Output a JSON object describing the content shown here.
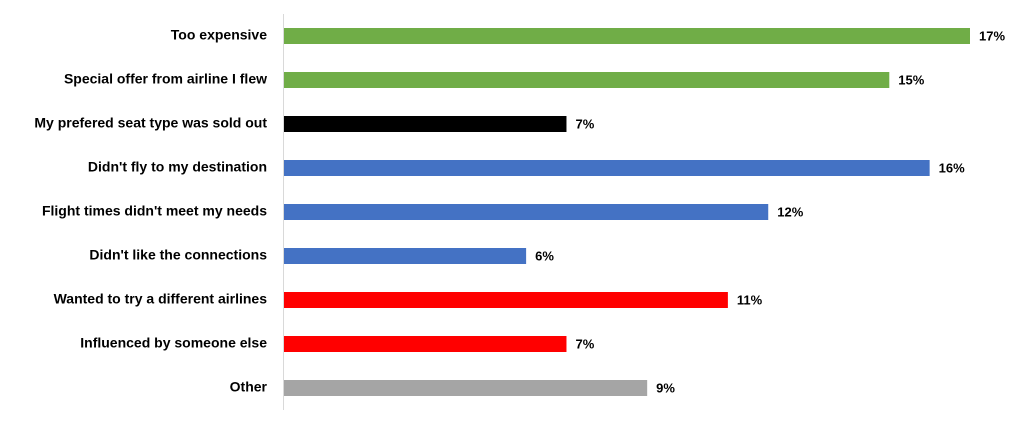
{
  "chart_data": {
    "type": "hbar",
    "categories": [
      "Too expensive",
      "Special offer from airline I flew",
      "My prefered seat type was sold out",
      "Didn't fly to my destination",
      "Flight times didn't meet my needs",
      "Didn't like the connections",
      "Wanted to try a different airlines",
      "Influenced by someone else",
      "Other"
    ],
    "values": [
      17,
      15,
      7,
      16,
      12,
      6,
      11,
      7,
      9
    ],
    "value_labels": [
      "17%",
      "15%",
      "7%",
      "16%",
      "12%",
      "6%",
      "11%",
      "7%",
      "9%"
    ],
    "colors": [
      "#70ad47",
      "#70ad47",
      "#000000",
      "#4472c4",
      "#4472c4",
      "#4472c4",
      "#ff0000",
      "#ff0000",
      "#a5a5a5"
    ]
  }
}
